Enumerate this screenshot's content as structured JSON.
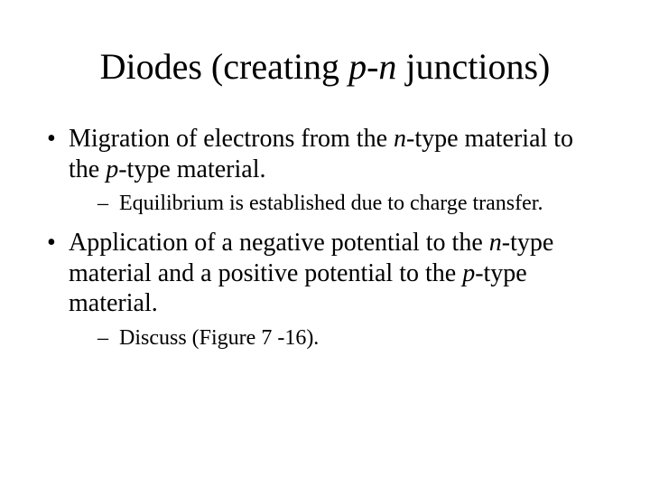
{
  "title": {
    "pre": "Diodes (creating ",
    "em1": "p-n",
    "post": " junctions)"
  },
  "bullets": [
    {
      "segments": [
        {
          "t": "Migration of electrons from the ",
          "i": false
        },
        {
          "t": "n",
          "i": true
        },
        {
          "t": "-type material to the ",
          "i": false
        },
        {
          "t": "p",
          "i": true
        },
        {
          "t": "-type material.",
          "i": false
        }
      ],
      "sub": [
        {
          "segments": [
            {
              "t": "Equilibrium is established due to charge transfer.",
              "i": false
            }
          ]
        }
      ]
    },
    {
      "segments": [
        {
          "t": "Application of a negative potential to the ",
          "i": false
        },
        {
          "t": "n",
          "i": true
        },
        {
          "t": "-type material and a positive potential to the ",
          "i": false
        },
        {
          "t": "p",
          "i": true
        },
        {
          "t": "-type material.",
          "i": false
        }
      ],
      "sub": [
        {
          "segments": [
            {
              "t": "Discuss (Figure 7 -16).",
              "i": false
            }
          ]
        }
      ]
    }
  ],
  "style": {
    "background": "#ffffff",
    "text_color": "#000000",
    "title_fontsize": 40,
    "body_fontsize": 28,
    "sub_fontsize": 24,
    "font_family": "Times New Roman"
  }
}
